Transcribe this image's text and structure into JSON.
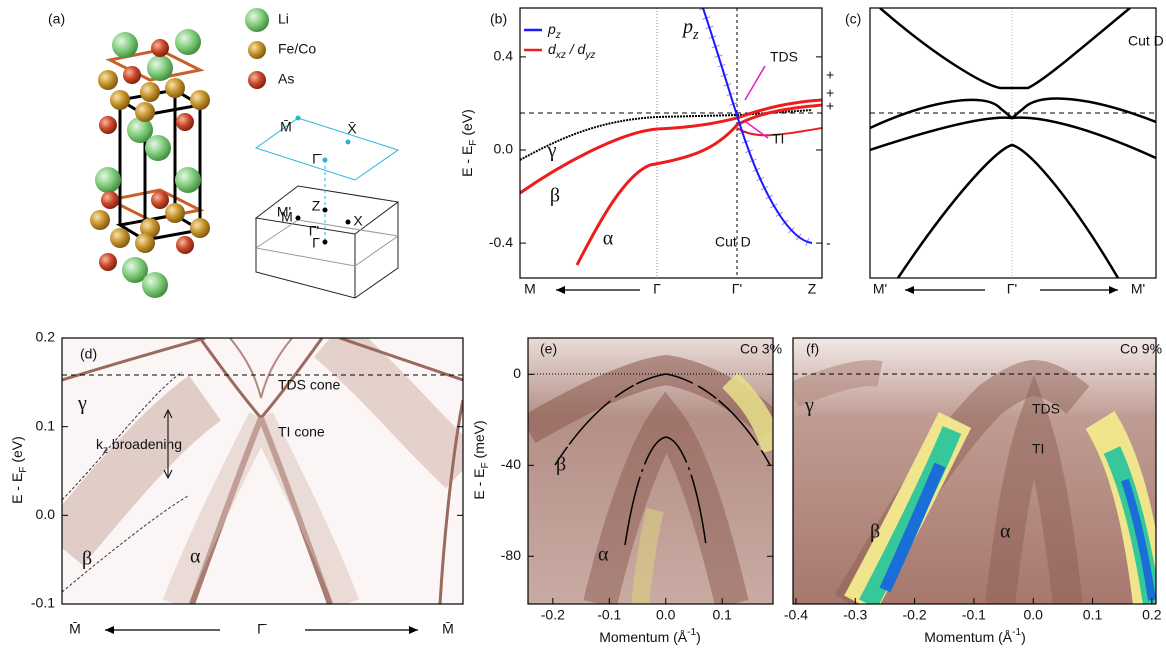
{
  "panel_a": {
    "label": "(a)",
    "legend": [
      {
        "text": "Li",
        "color": "#7cc87a"
      },
      {
        "text": "Fe/Co",
        "color": "#c8962e"
      },
      {
        "text": "As",
        "color": "#cc4a2c"
      }
    ],
    "bz_labels": [
      "M̄",
      "X̄",
      "Γ̄",
      "M'",
      "Z",
      "X",
      "M",
      "Γ'",
      "Γ"
    ]
  },
  "chart_data": [
    {
      "type": "line",
      "panel_label": "(b)",
      "ylabel": [
        {
          "t": "E - E"
        },
        {
          "t": "F",
          "sub": true
        },
        {
          "t": " (eV)"
        }
      ],
      "ylim": [
        -0.55,
        0.61
      ],
      "yticks": [
        0.4,
        {
          "value": 0,
          "label": "0.0"
        },
        -0.4
      ],
      "categories": [
        "M",
        "Γ",
        "Γ'",
        "Z"
      ],
      "legend": [
        {
          "parts": [
            {
              "t": "p"
            },
            {
              "t": "z",
              "sub": true
            }
          ],
          "color": "#1a1aff"
        },
        {
          "parts": [
            {
              "t": "d"
            },
            {
              "t": "xz",
              "sub": true
            },
            {
              "t": " / d"
            },
            {
              "t": "yz",
              "sub": true
            }
          ],
          "color": "#ee1c1c"
        }
      ],
      "annotations": [
        [
          {
            "t": "p"
          },
          {
            "t": "z",
            "sub": true
          }
        ],
        "TDS",
        "TI",
        "γ",
        "β",
        "α",
        "Cut D",
        "+",
        "+",
        "+",
        "-"
      ]
    },
    {
      "type": "line",
      "panel_label": "(c)",
      "categories": [
        "M'",
        "Γ'",
        "M'"
      ],
      "annotations": [
        "Cut D"
      ]
    },
    {
      "type": "heatmap",
      "panel_label": "(d)",
      "ylabel": [
        {
          "t": "E - E"
        },
        {
          "t": "F",
          "sub": true
        },
        {
          "t": " (eV)"
        }
      ],
      "ylim": [
        -0.1,
        0.2
      ],
      "yticks": [
        0.2,
        0.1,
        {
          "value": 0,
          "label": "0.0"
        },
        -0.1
      ],
      "categories": [
        "M̄",
        "Γ̄",
        "M̄"
      ],
      "annotations": [
        "γ",
        [
          {
            "t": "k"
          },
          {
            "t": "z",
            "sub": true
          },
          {
            "t": " broadening"
          }
        ],
        "TDS cone",
        "TI cone",
        "β",
        "α"
      ]
    },
    {
      "type": "heatmap",
      "panel_label": "(e)",
      "ylabel": [
        {
          "t": "E - E"
        },
        {
          "t": "F",
          "sub": true
        },
        {
          "t": " (meV)"
        }
      ],
      "xlabel": [
        {
          "t": "Momentum (Å"
        },
        {
          "t": "-1",
          "sup": true
        },
        {
          "t": ")"
        }
      ],
      "ylim": [
        -101,
        16
      ],
      "yticks": [
        0,
        -40,
        -80
      ],
      "xlim": [
        -0.244,
        0.19
      ],
      "xticks": [
        -0.2,
        -0.1,
        {
          "value": 0,
          "label": "0.0"
        },
        0.1
      ],
      "annotations": [
        "Co 3%",
        "β",
        "α"
      ]
    },
    {
      "type": "heatmap",
      "panel_label": "(f)",
      "xlabel": [
        {
          "t": "Momentum (Å"
        },
        {
          "t": "-1",
          "sup": true
        },
        {
          "t": ")"
        }
      ],
      "xlim": [
        -0.405,
        0.207
      ],
      "xticks": [
        -0.4,
        -0.3,
        -0.2,
        -0.1,
        {
          "value": 0,
          "label": "0.0"
        },
        0.1,
        0.2
      ],
      "annotations": [
        "Co 9%",
        "γ",
        "TDS",
        "TI",
        "β",
        "α"
      ]
    }
  ]
}
